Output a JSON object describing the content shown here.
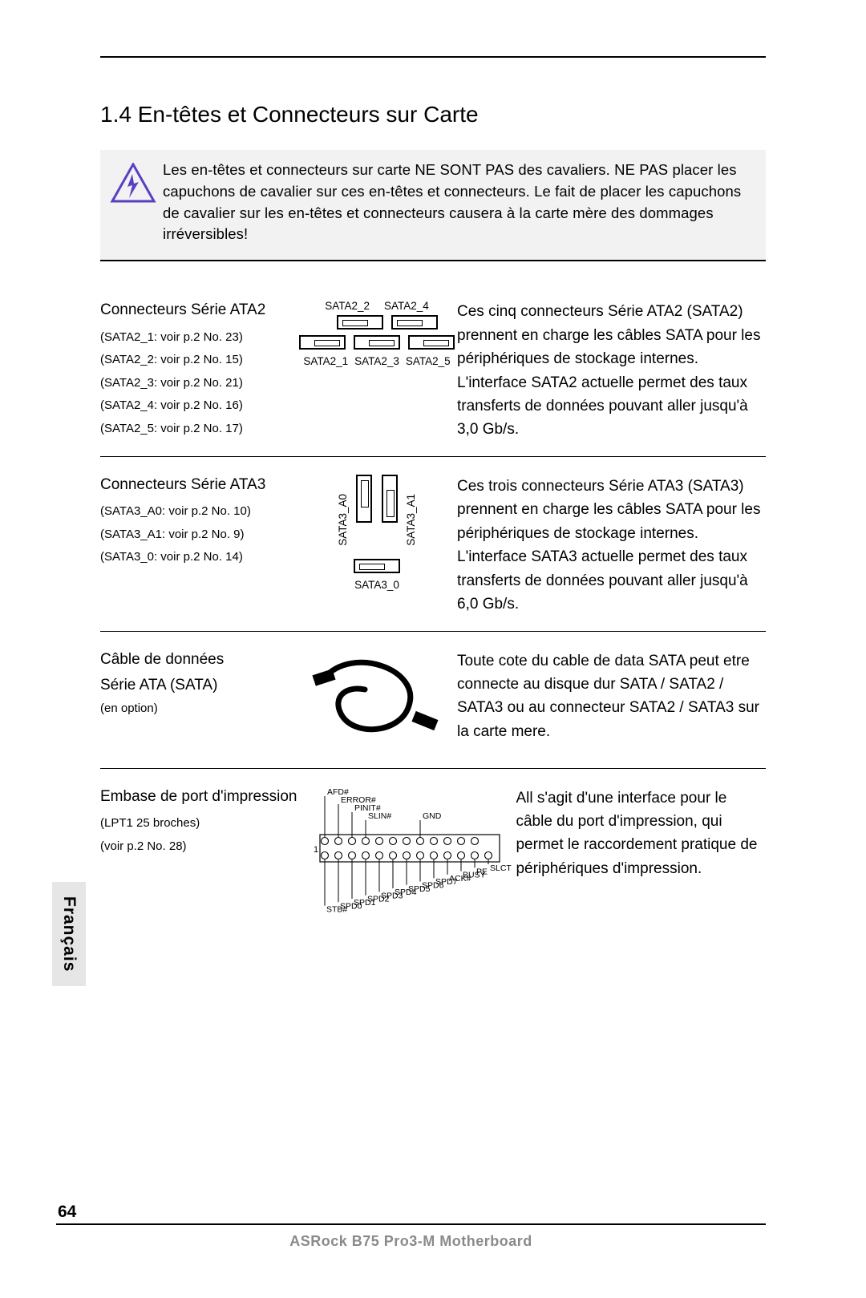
{
  "heading": "1.4  En-têtes et Connecteurs sur Carte",
  "warning": "Les en-têtes et connecteurs sur carte NE SONT PAS des cavaliers. NE PAS placer les capuchons de cavalier sur ces en-têtes et connecteurs. Le fait de placer les capuchons de cavalier sur les en-têtes et connecteurs causera à la carte mère des dommages irréversibles!",
  "sata2": {
    "title": "Connecteurs Série ATA2",
    "refs": [
      "(SATA2_1: voir  p.2  No. 23)",
      "(SATA2_2: voir  p.2  No. 15)",
      "(SATA2_3: voir  p.2  No. 21)",
      "(SATA2_4: voir  p.2  No. 16)",
      "(SATA2_5: voir  p.2  No. 17)"
    ],
    "top_labels": [
      "SATA2_2",
      "SATA2_4"
    ],
    "bot_labels": [
      "SATA2_1",
      "SATA2_3",
      "SATA2_5"
    ],
    "desc": "Ces cinq connecteurs Série ATA2 (SATA2) prennent en charge les câbles SATA pour les périphériques de stockage internes. L'interface SATA2 actuelle permet des taux transferts de données pouvant aller jusqu'à 3,0 Gb/s."
  },
  "sata3": {
    "title": "Connecteurs Série ATA3",
    "refs": [
      "(SATA3_A0: voir  p.2  No. 10)",
      "(SATA3_A1: voir  p.2  No. 9)",
      "(SATA3_0: voir  p.2  No. 14)"
    ],
    "vlabel_left": "SATA3_A0",
    "vlabel_right": "SATA3_A1",
    "bot_label": "SATA3_0",
    "desc": "Ces trois connecteurs Série ATA3 (SATA3) prennent en charge les câbles SATA pour les périphériques de stockage internes. L'interface SATA3 actuelle permet des taux transferts de données pouvant aller jusqu'à 6,0 Gb/s."
  },
  "cable": {
    "title1": "Câble de données",
    "title2": "Série ATA (SATA)",
    "opt": "(en option)",
    "desc": "Toute cote du cable de data SATA peut etre connecte au disque dur SATA / SATA2 / SATA3 ou au connecteur SATA2 / SATA3 sur la carte mere."
  },
  "lpt": {
    "title": "Embase de port d'impression",
    "ref1": "(LPT1 25 broches)",
    "ref2": "(voir  p.2  No. 28)",
    "desc": "All s'agit d'une interface pour le câble du port d'impression, qui permet le raccordement pratique de périphériques d'impression.",
    "pins_top": [
      "AFD#",
      "ERROR#",
      "PINIT#",
      "SLIN#",
      "GND"
    ],
    "pins_bottom": [
      "STB#",
      "SPD0",
      "SPD1",
      "SPD2",
      "SPD3",
      "SPD4",
      "SPD5",
      "SPD6",
      "SPD7",
      "ACK#",
      "BUSY",
      "PE",
      "SLCT"
    ]
  },
  "side_tab": "Français",
  "page_number": "64",
  "footer": "ASRock  B75 Pro3-M  Motherboard",
  "colors": {
    "triangle_stroke": "#5b3fc2",
    "bolt_fill": "#5b3fc2",
    "grey_bg": "#f2f2f2",
    "footer_grey": "#8a8a8a"
  }
}
